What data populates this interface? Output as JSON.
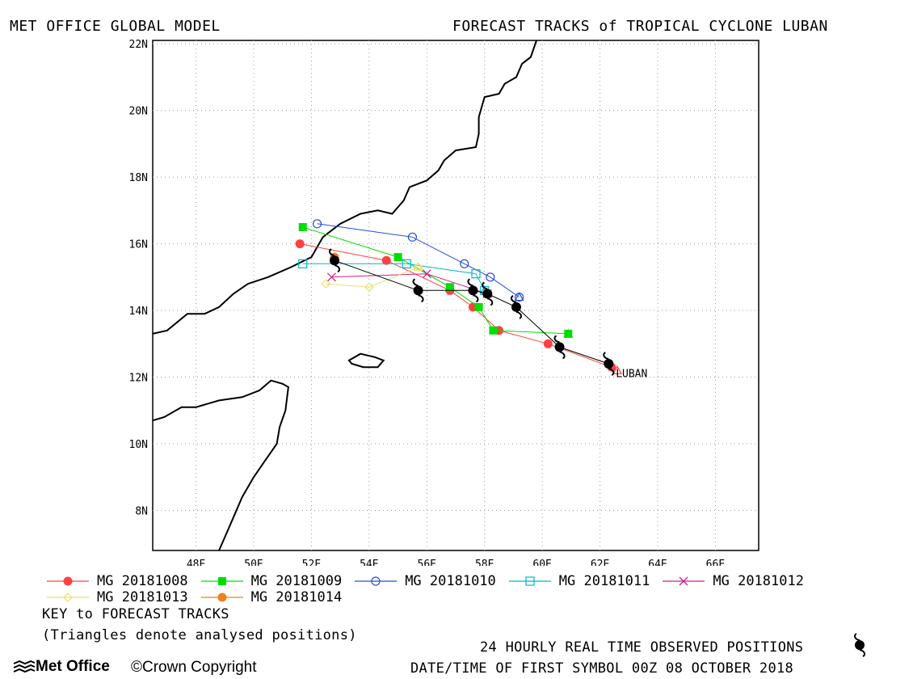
{
  "header": {
    "left_title": "MET OFFICE GLOBAL MODEL",
    "right_title": "FORECAST TRACKS of TROPICAL CYCLONE LUBAN"
  },
  "map": {
    "lon_range": [
      46.5,
      67.5
    ],
    "lat_range": [
      6.8,
      22.1
    ],
    "lon_ticks": [
      "48E",
      "50E",
      "52E",
      "54E",
      "56E",
      "58E",
      "60E",
      "62E",
      "64E",
      "66E"
    ],
    "lat_ticks": [
      "8N",
      "10N",
      "12N",
      "14N",
      "16N",
      "18N",
      "20N",
      "22N"
    ],
    "storm_label": "LUBAN",
    "grid": "dotted"
  },
  "legend": {
    "items": [
      {
        "label": "MG 20181008",
        "color": "#ff4040",
        "marker": "filled-circle"
      },
      {
        "label": "MG 20181009",
        "color": "#00dd00",
        "marker": "filled-square"
      },
      {
        "label": "MG 20181010",
        "color": "#2a4bd7",
        "marker": "open-circle"
      },
      {
        "label": "MG 20181011",
        "color": "#00b8c8",
        "marker": "open-square"
      },
      {
        "label": "MG 20181012",
        "color": "#cc2288",
        "marker": "x"
      },
      {
        "label": "MG 20181013",
        "color": "#e8e070",
        "marker": "open-diamond"
      },
      {
        "label": "MG 20181014",
        "color": "#f08020",
        "marker": "filled-circle"
      }
    ]
  },
  "notes": {
    "key": "KEY to FORECAST TRACKS",
    "triangles": "(Triangles denote analysed positions)",
    "observed": "24 HOURLY REAL TIME OBSERVED POSITIONS",
    "datetime": "DATE/TIME OF FIRST SYMBOL 00Z 08 OCTOBER 2018"
  },
  "footer": {
    "logo_text": "Met Office",
    "copyright": "©Crown Copyright"
  },
  "chart_data": {
    "type": "map-tracks",
    "observed_track": [
      [
        62.3,
        12.4
      ],
      [
        60.6,
        12.9
      ],
      [
        59.1,
        14.1
      ],
      [
        58.1,
        14.5
      ],
      [
        57.6,
        14.6
      ],
      [
        55.7,
        14.6
      ],
      [
        52.8,
        15.5
      ]
    ],
    "series": [
      {
        "name": "MG 20181008",
        "color": "#ff4040",
        "marker": "filled-circle",
        "points": [
          [
            62.4,
            12.3
          ],
          [
            60.2,
            13.0
          ],
          [
            58.5,
            13.4
          ],
          [
            57.6,
            14.1
          ],
          [
            56.8,
            14.6
          ],
          [
            54.6,
            15.5
          ],
          [
            51.6,
            16.0
          ]
        ],
        "analysed": [
          62.6,
          12.2
        ]
      },
      {
        "name": "MG 20181009",
        "color": "#00dd00",
        "marker": "filled-square",
        "points": [
          [
            60.9,
            13.3
          ],
          [
            58.3,
            13.4
          ],
          [
            57.8,
            14.1
          ],
          [
            56.8,
            14.7
          ],
          [
            55.0,
            15.6
          ],
          [
            51.7,
            16.5
          ]
        ],
        "analysed": [
          60.9,
          13.3
        ]
      },
      {
        "name": "MG 20181010",
        "color": "#2a4bd7",
        "marker": "open-circle",
        "points": [
          [
            59.2,
            14.4
          ],
          [
            58.2,
            15.0
          ],
          [
            57.3,
            15.4
          ],
          [
            55.5,
            16.2
          ],
          [
            52.2,
            16.6
          ]
        ],
        "analysed": [
          59.2,
          14.4
        ]
      },
      {
        "name": "MG 20181011",
        "color": "#00b8c8",
        "marker": "open-square",
        "points": [
          [
            58.0,
            14.6
          ],
          [
            57.7,
            15.1
          ],
          [
            55.3,
            15.4
          ],
          [
            51.7,
            15.4
          ]
        ],
        "analysed": [
          58.0,
          14.6
        ]
      },
      {
        "name": "MG 20181012",
        "color": "#cc2288",
        "marker": "x",
        "points": [
          [
            58.1,
            14.5
          ],
          [
            56.0,
            15.1
          ],
          [
            52.7,
            15.0
          ]
        ],
        "analysed": [
          58.1,
          14.5
        ]
      },
      {
        "name": "MG 20181013",
        "color": "#e8e070",
        "marker": "open-diamond",
        "points": [
          [
            55.7,
            15.3
          ],
          [
            54.0,
            14.7
          ],
          [
            52.5,
            14.8
          ]
        ],
        "analysed": [
          55.7,
          15.3
        ]
      },
      {
        "name": "MG 20181014",
        "color": "#f08020",
        "marker": "filled-circle",
        "points": [
          [
            52.8,
            15.6
          ]
        ],
        "analysed": [
          52.8,
          15.6
        ]
      }
    ],
    "coastlines": [
      [
        [
          46.5,
          13.3
        ],
        [
          47.0,
          13.4
        ],
        [
          47.7,
          13.9
        ],
        [
          48.3,
          13.9
        ],
        [
          48.8,
          14.1
        ],
        [
          49.3,
          14.5
        ],
        [
          49.8,
          14.8
        ],
        [
          50.5,
          15.0
        ],
        [
          51.3,
          15.3
        ],
        [
          52.0,
          15.6
        ],
        [
          52.4,
          16.2
        ],
        [
          53.0,
          16.6
        ],
        [
          53.7,
          16.9
        ],
        [
          54.3,
          17.0
        ],
        [
          54.8,
          16.9
        ],
        [
          55.2,
          17.3
        ],
        [
          55.4,
          17.7
        ],
        [
          56.0,
          17.9
        ],
        [
          56.4,
          18.2
        ],
        [
          56.6,
          18.5
        ],
        [
          57.0,
          18.8
        ],
        [
          57.7,
          18.9
        ],
        [
          57.8,
          19.3
        ],
        [
          57.8,
          19.8
        ],
        [
          58.0,
          20.4
        ],
        [
          58.5,
          20.5
        ],
        [
          58.7,
          20.8
        ],
        [
          59.1,
          21.0
        ],
        [
          59.3,
          21.4
        ],
        [
          59.6,
          21.6
        ],
        [
          59.8,
          22.1
        ]
      ],
      [
        [
          46.5,
          10.7
        ],
        [
          46.9,
          10.8
        ],
        [
          47.5,
          11.1
        ],
        [
          48.0,
          11.1
        ],
        [
          48.8,
          11.3
        ],
        [
          49.6,
          11.4
        ],
        [
          50.2,
          11.6
        ],
        [
          50.6,
          11.9
        ],
        [
          51.0,
          11.8
        ],
        [
          51.2,
          11.7
        ],
        [
          51.1,
          11.0
        ],
        [
          50.9,
          10.5
        ],
        [
          50.8,
          10.0
        ],
        [
          50.4,
          9.5
        ],
        [
          50.0,
          9.0
        ],
        [
          49.6,
          8.4
        ],
        [
          49.3,
          7.8
        ],
        [
          49.0,
          7.2
        ],
        [
          48.8,
          6.8
        ]
      ]
    ],
    "island": [
      [
        53.3,
        12.5
      ],
      [
        53.7,
        12.7
      ],
      [
        54.2,
        12.6
      ],
      [
        54.5,
        12.5
      ],
      [
        54.3,
        12.3
      ],
      [
        53.8,
        12.3
      ],
      [
        53.4,
        12.4
      ],
      [
        53.3,
        12.5
      ]
    ]
  }
}
